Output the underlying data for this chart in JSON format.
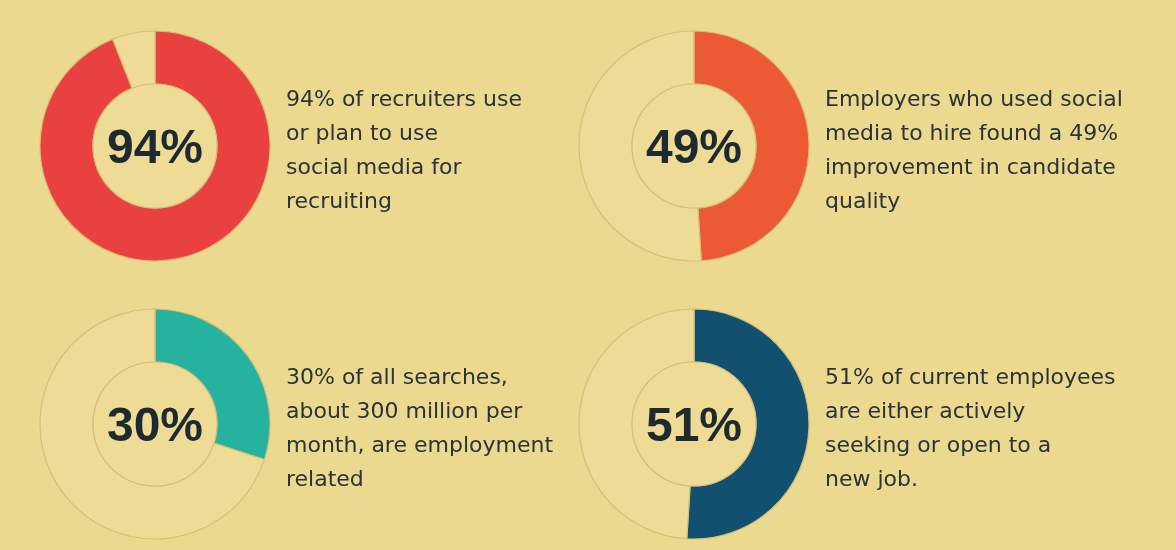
{
  "chart_data": [
    {
      "type": "donut",
      "title": "94%",
      "categories": [
        null,
        null
      ],
      "values": [
        94,
        6
      ],
      "colors": [
        "#e8413f",
        "#eedc96"
      ],
      "annotations": [
        "94% of recruiters use",
        "or plan to use",
        "social media for",
        "recruiting"
      ]
    },
    {
      "type": "donut",
      "title": "49%",
      "categories": [
        null,
        null
      ],
      "values": [
        49,
        51
      ],
      "colors": [
        "#ec5a35",
        "#eedc96"
      ],
      "annotations": [
        "Employers who used social",
        "media to hire found a 49%",
        "improvement in candidate",
        "quality"
      ]
    },
    {
      "type": "donut",
      "title": "30%",
      "categories": [
        null,
        null
      ],
      "values": [
        30,
        70
      ],
      "colors": [
        "#25b3a0",
        "#eedc96"
      ],
      "annotations": [
        "30% of all searches,",
        "about 300 million per",
        "month, are employment",
        "related"
      ]
    },
    {
      "type": "donut",
      "title": "51%",
      "categories": [
        null,
        null
      ],
      "values": [
        51,
        49
      ],
      "colors": [
        "#11506e",
        "#eedc96"
      ],
      "annotations": [
        "51% of current employees",
        "are either actively",
        "seeking or open to a",
        "new job."
      ]
    }
  ]
}
